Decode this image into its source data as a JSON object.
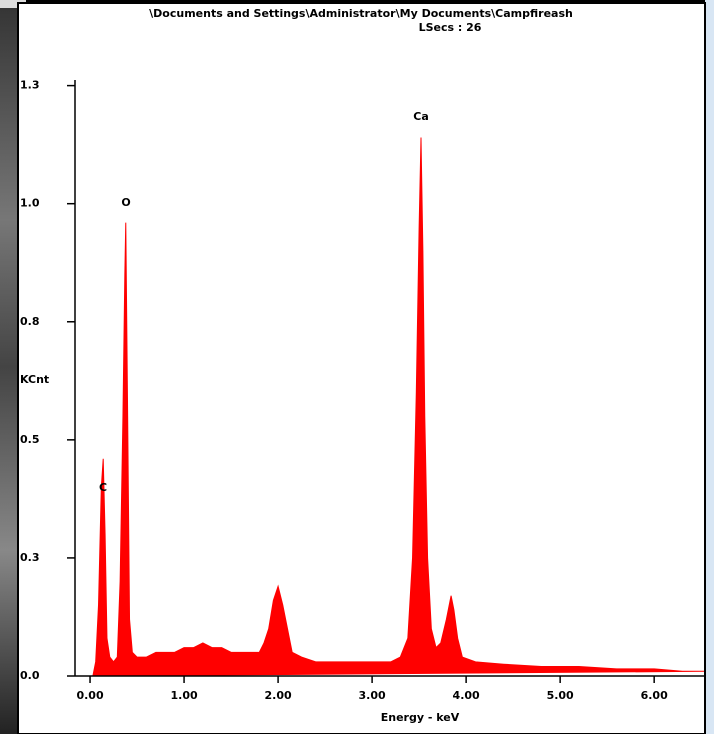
{
  "chart_data": {
    "type": "area",
    "title": "\\Documents and Settings\\Administrator\\My Documents\\Campfireash",
    "subtitle": "LSecs :  26",
    "x_label": "Energy - keV",
    "y_label": "KCnt",
    "y_label_color": "#ff0000",
    "color": "#ff0000",
    "annotations": [
      "C",
      "O",
      "Ca"
    ],
    "xlim": [
      -0.16,
      6.53
    ],
    "ylim": [
      0,
      1.3
    ],
    "xticks": [
      {
        "value": 0,
        "label": "0.00"
      },
      {
        "value": 1,
        "label": "1.00"
      },
      {
        "value": 2,
        "label": "2.00"
      },
      {
        "value": 3,
        "label": "3.00"
      },
      {
        "value": 4,
        "label": "4.00"
      },
      {
        "value": 5,
        "label": "5.00"
      },
      {
        "value": 6,
        "label": "6.00"
      }
    ],
    "yticks": [
      {
        "value": 0,
        "label": "0.0"
      },
      {
        "value": 0.25,
        "label": "0.3"
      },
      0.5,
      {
        "value": 0.75,
        "label": "0.8"
      },
      {
        "value": 1,
        "label": "1.0"
      },
      {
        "value": 1.25,
        "label": "1.3"
      }
    ],
    "x": [
      0.03,
      0.06,
      0.09,
      0.12,
      0.14,
      0.16,
      0.18,
      0.21,
      0.25,
      0.29,
      0.32,
      0.35,
      0.37,
      0.38,
      0.4,
      0.42,
      0.45,
      0.5,
      0.6,
      0.7,
      0.8,
      0.9,
      1.0,
      1.1,
      1.2,
      1.3,
      1.4,
      1.5,
      1.6,
      1.7,
      1.8,
      1.85,
      1.9,
      1.95,
      2.0,
      2.05,
      2.1,
      2.15,
      2.25,
      2.4,
      2.6,
      2.8,
      3.0,
      3.2,
      3.3,
      3.38,
      3.43,
      3.47,
      3.5,
      3.52,
      3.54,
      3.56,
      3.59,
      3.63,
      3.68,
      3.73,
      3.79,
      3.84,
      3.87,
      3.91,
      3.96,
      4.1,
      4.4,
      4.8,
      5.2,
      5.6,
      6.0,
      6.3,
      6.53
    ],
    "values": [
      0,
      0.03,
      0.15,
      0.4,
      0.46,
      0.3,
      0.08,
      0.04,
      0.03,
      0.04,
      0.2,
      0.55,
      0.85,
      0.96,
      0.55,
      0.12,
      0.05,
      0.04,
      0.04,
      0.05,
      0.05,
      0.05,
      0.06,
      0.06,
      0.07,
      0.06,
      0.06,
      0.05,
      0.05,
      0.05,
      0.05,
      0.07,
      0.1,
      0.16,
      0.19,
      0.15,
      0.1,
      0.05,
      0.04,
      0.03,
      0.03,
      0.03,
      0.03,
      0.03,
      0.04,
      0.08,
      0.25,
      0.6,
      0.95,
      1.14,
      0.9,
      0.55,
      0.25,
      0.1,
      0.06,
      0.07,
      0.12,
      0.17,
      0.14,
      0.08,
      0.04,
      0.03,
      0.025,
      0.02,
      0.02,
      0.015,
      0.015,
      0.01,
      0.01
    ]
  }
}
